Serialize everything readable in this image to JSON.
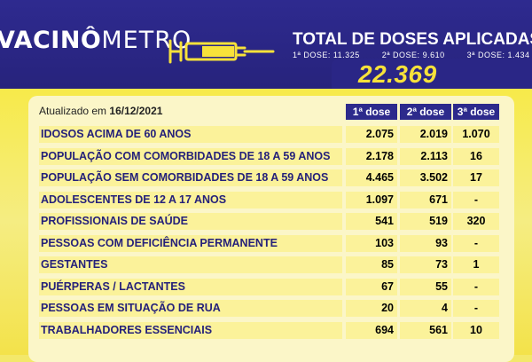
{
  "header": {
    "logo_part1": "VACINÔ",
    "logo_part2": "METRO",
    "total_title": "TOTAL DE DOSES APLICADAS",
    "dose1": "1ª DOSE: 11.325",
    "dose2": "2ª DOSE: 9.610",
    "dose3": "3ª DOSE: 1.434",
    "total_value": "22.369"
  },
  "table": {
    "updated_label": "Atualizado em",
    "updated_date": "16/12/2021",
    "headers": [
      "1ª dose",
      "2ª dose",
      "3ª dose"
    ],
    "rows": [
      {
        "label": "IDOSOS ACIMA DE 60 ANOS",
        "d1": "2.075",
        "d2": "2.019",
        "d3": "1.070"
      },
      {
        "label": "POPULAÇÃO COM COMORBIDADES DE 18 A 59 ANOS",
        "d1": "2.178",
        "d2": "2.113",
        "d3": "16"
      },
      {
        "label": "POPULAÇÃO SEM COMORBIDADES DE 18 A 59 ANOS",
        "d1": "4.465",
        "d2": "3.502",
        "d3": "17"
      },
      {
        "label": "ADOLESCENTES DE 12 A 17 ANOS",
        "d1": "1.097",
        "d2": "671",
        "d3": "-"
      },
      {
        "label": "PROFISSIONAIS DE SAÚDE",
        "d1": "541",
        "d2": "519",
        "d3": "320"
      },
      {
        "label": "PESSOAS COM DEFICIÊNCIA PERMANENTE",
        "d1": "103",
        "d2": "93",
        "d3": "-"
      },
      {
        "label": "GESTANTES",
        "d1": "85",
        "d2": "73",
        "d3": "1"
      },
      {
        "label": "PUÉRPERAS / LACTANTES",
        "d1": "67",
        "d2": "55",
        "d3": "-"
      },
      {
        "label": "PESSOAS EM SITUAÇÃO DE RUA",
        "d1": "20",
        "d2": "4",
        "d3": "-"
      },
      {
        "label": "TRABALHADORES ESSENCIAIS",
        "d1": "694",
        "d2": "561",
        "d3": "10"
      }
    ]
  },
  "colors": {
    "header_bg": "#2e2a8f",
    "accent_yellow": "#f7e23a",
    "row_bg": "#fbf29a"
  }
}
